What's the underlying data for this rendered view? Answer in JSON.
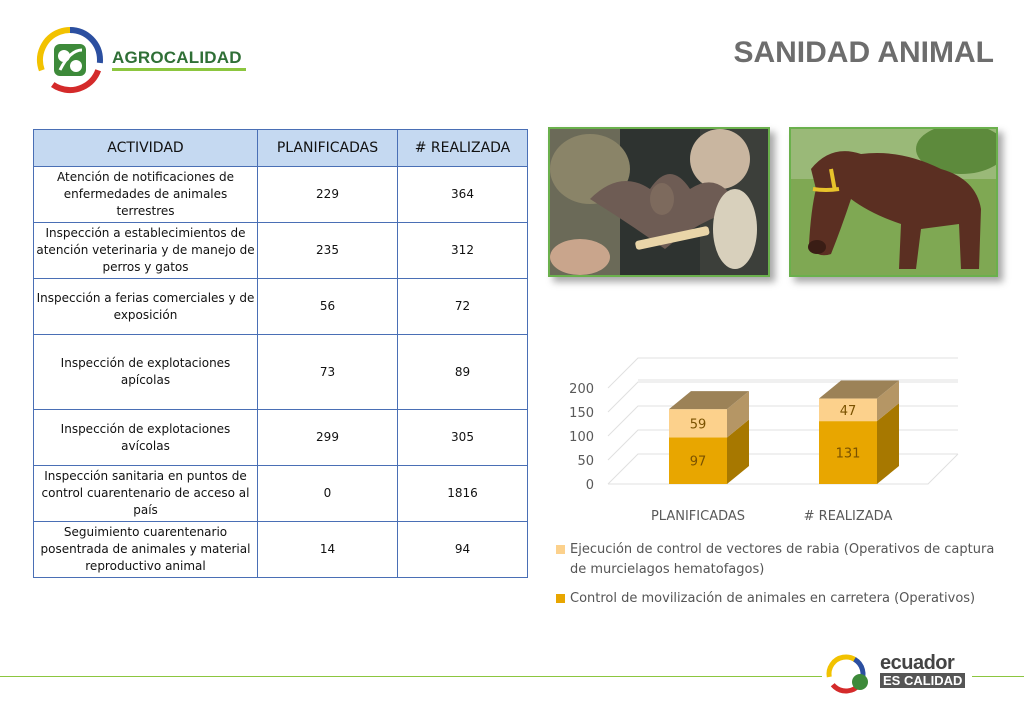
{
  "header": {
    "brand": "AGROCALIDAD",
    "title": "SANIDAD ANIMAL"
  },
  "table": {
    "headers": [
      "ACTIVIDAD",
      "PLANIFICADAS",
      "# REALIZADA"
    ],
    "rows": [
      [
        "Atención de notificaciones de enfermedades de animales terrestres",
        "229",
        "364"
      ],
      [
        "Inspección a establecimientos de atención veterinaria y de manejo de perros y gatos",
        "235",
        "312"
      ],
      [
        "Inspección a ferias comerciales y de exposición",
        "56",
        "72"
      ],
      [
        "Inspección de explotaciones apícolas",
        "73",
        "89"
      ],
      [
        "Inspección de explotaciones avícolas",
        "299",
        "305"
      ],
      [
        "Inspección sanitaria en puntos de control cuarentenario de acceso al país",
        "0",
        "1816"
      ],
      [
        "Seguimiento cuarentenario posentrada de animales y material reproductivo animal",
        "14",
        "94"
      ]
    ]
  },
  "chart_data": {
    "type": "bar",
    "stacked": true,
    "categories": [
      "PLANIFICADAS",
      "# REALIZADA"
    ],
    "series": [
      {
        "name": "Control de movilización de animales en carretera (Operativos)",
        "values": [
          97,
          131
        ],
        "color": "#e8a600"
      },
      {
        "name": "Ejecución de control de vectores de rabia (Operativos de captura de murcielagos hematofagos)",
        "values": [
          59,
          47
        ],
        "color": "#fcd18c"
      }
    ],
    "ylim": [
      0,
      200
    ],
    "yticks": [
      0,
      50,
      100,
      150,
      200
    ],
    "legend_position": "bottom"
  },
  "footer": {
    "line1": "ecuador",
    "line2": "ES CALIDAD"
  }
}
